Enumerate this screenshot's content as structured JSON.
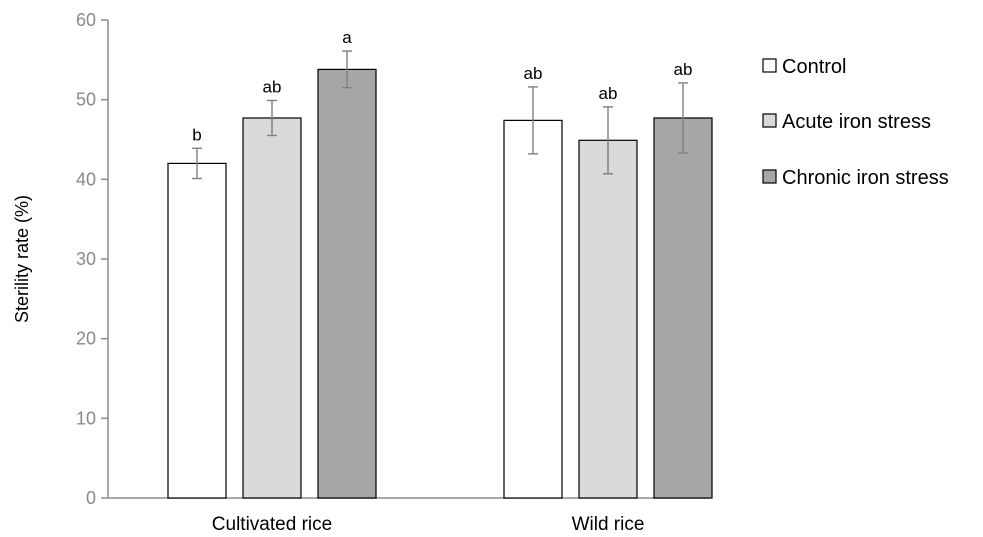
{
  "chart_data": {
    "type": "bar",
    "title": "",
    "xlabel": "",
    "ylabel": "Sterility rate (%)",
    "ylim": [
      0,
      60
    ],
    "yticks": [
      0,
      10,
      20,
      30,
      40,
      50,
      60
    ],
    "grid": false,
    "legend_position": "right",
    "categories": [
      "Cultivated rice",
      "Wild rice"
    ],
    "series": [
      {
        "name": "Control",
        "color": "#ffffff",
        "values": [
          42.0,
          47.4
        ],
        "errors": [
          1.9,
          4.2
        ],
        "significance": [
          "b",
          "ab"
        ]
      },
      {
        "name": "Acute iron stress",
        "color": "#d9d9d9",
        "values": [
          47.7,
          44.9
        ],
        "errors": [
          2.2,
          4.2
        ],
        "significance": [
          "ab",
          "ab"
        ]
      },
      {
        "name": "Chronic iron stress",
        "color": "#a6a6a6",
        "values": [
          53.8,
          47.7
        ],
        "errors": [
          2.3,
          4.4
        ],
        "significance": [
          "a",
          "ab"
        ]
      }
    ]
  }
}
